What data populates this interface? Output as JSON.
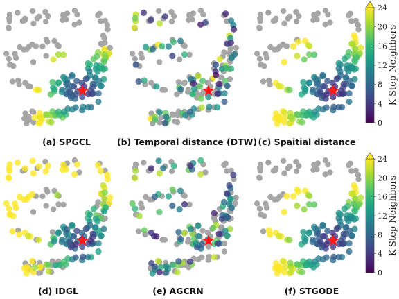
{
  "chart_data": [
    {
      "type": "scatter",
      "caption": "(a) SPGCL",
      "highlight_marker": "star",
      "colorbar": {
        "label": "K-Step Neighbors",
        "range": [
          0,
          24
        ],
        "ticks": [
          "0",
          "4",
          "8",
          "12",
          "16",
          "20",
          "24"
        ]
      }
    },
    {
      "type": "scatter",
      "caption": "(b) Temporal distance (DTW)",
      "highlight_marker": "star"
    },
    {
      "type": "scatter",
      "caption": "(c) Spaitial distance",
      "highlight_marker": "star"
    },
    {
      "type": "scatter",
      "caption": "(d) IDGL",
      "highlight_marker": "star",
      "colorbar": {
        "label": "K-Step Neighbors",
        "range": [
          0,
          24
        ],
        "ticks": [
          "0",
          "4",
          "8",
          "12",
          "16",
          "20",
          "24"
        ]
      }
    },
    {
      "type": "scatter",
      "caption": "(e) AGCRN",
      "highlight_marker": "star"
    },
    {
      "type": "scatter",
      "caption": "(f) STGODE",
      "highlight_marker": "star"
    }
  ],
  "colors": {
    "unreached": "#a6a6a6",
    "star": "#ff1a1a",
    "colormap": [
      "#440154",
      "#482878",
      "#3e4a89",
      "#31688e",
      "#26828e",
      "#1f9e89",
      "#35b779",
      "#6ece58",
      "#b5de2b",
      "#fde725"
    ]
  }
}
